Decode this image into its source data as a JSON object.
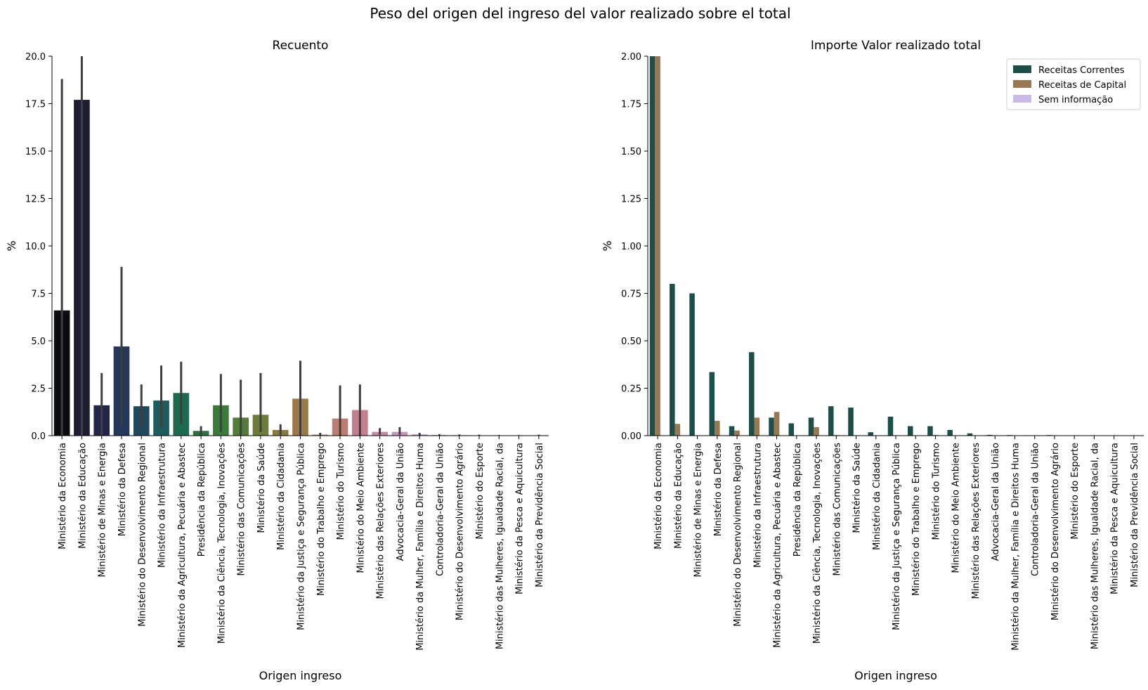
{
  "figure": {
    "suptitle": "Peso del origen del ingreso del valor realizado sobre el total"
  },
  "chart_data": [
    {
      "type": "bar",
      "title": "Recuento",
      "xlabel": "Origen ingreso",
      "ylabel": "%",
      "ylim": [
        0,
        20
      ],
      "yticks": [
        "0.0",
        "2.5",
        "5.0",
        "7.5",
        "10.0",
        "12.5",
        "15.0",
        "17.5",
        "20.0"
      ],
      "grid": false,
      "categories": [
        "Ministério da Economia",
        "Ministério da Educação",
        "Ministério de Minas e Energia",
        "Ministério da Defesa",
        "Ministério do Desenvolvimento Regional",
        "Ministério da Infraestrutura",
        "Ministério da Agricultura, Pecuária e Abastec",
        "Presidência da República",
        "Ministério da Ciência, Tecnologia, Inovações",
        "Ministério das Comunicações",
        "Ministério da Saúde",
        "Ministério da Cidadania",
        "Ministério da Justiça e Segurança Pública",
        "Ministério do Trabalho e Emprego",
        "Ministério do Turismo",
        "Ministério do Meio Ambiente",
        "Ministério das Relações Exteriores",
        "Advocacia-Geral da União",
        "Ministério da Mulher, Família e Direitos Huma",
        "Controladoria-Geral da União",
        "Ministério do Desenvolvimento Agrário",
        "Ministério do Esporte",
        "Ministério das Mulheres, Igualdade Racial, da",
        "Ministério da Pesca e Aquicultura",
        "Ministério da Previdência Social"
      ],
      "values": [
        6.6,
        17.7,
        1.6,
        4.7,
        1.55,
        1.85,
        2.25,
        0.25,
        1.6,
        0.95,
        1.1,
        0.3,
        1.95,
        0.05,
        0.9,
        1.35,
        0.2,
        0.2,
        0.07,
        0.04,
        0.03,
        0.01,
        0.01,
        0.01,
        0.01
      ],
      "error_low": [
        0,
        0,
        0,
        0.5,
        0.4,
        0.4,
        0.6,
        0.05,
        0.2,
        0,
        0.2,
        0.05,
        0,
        0,
        0,
        0,
        0.05,
        0.05,
        0,
        0,
        0,
        0,
        0,
        0,
        0
      ],
      "error_high": [
        18.8,
        20,
        3.3,
        8.9,
        2.7,
        3.7,
        3.9,
        0.5,
        3.25,
        2.95,
        3.3,
        0.6,
        3.95,
        0.15,
        2.65,
        2.7,
        0.4,
        0.45,
        0.15,
        0.08,
        0.06,
        0.05,
        0.03,
        0.03,
        0.05
      ],
      "colors": [
        "#0b0b10",
        "#1c1c33",
        "#232547",
        "#243659",
        "#1f4a5e",
        "#1d5c5e",
        "#1e6a4f",
        "#2a7440",
        "#3b7b3a",
        "#537c3a",
        "#6d7c3a",
        "#867a3e",
        "#9b7a4a",
        "#ad7a5b",
        "#bd7b71",
        "#c47f8e",
        "#c888a8",
        "#c694c2",
        "#c4a2d9",
        "#c6b1e6",
        "#cdbfee",
        "#d6cdf3",
        "#e0dbf7",
        "#e8e5fa",
        "#f0eefc"
      ]
    },
    {
      "type": "bar",
      "title": "Importe Valor realizado total",
      "xlabel": "Origen ingreso",
      "ylabel": "%",
      "ylim": [
        0,
        2
      ],
      "yticks": [
        "0.00",
        "0.25",
        "0.50",
        "0.75",
        "1.00",
        "1.25",
        "1.50",
        "1.75",
        "2.00"
      ],
      "grid": false,
      "legend_position": "top-right",
      "categories": [
        "Ministério da Economia",
        "Ministério da Educação",
        "Ministério de Minas e Energia",
        "Ministério da Defesa",
        "Ministério do Desenvolvimento Regional",
        "Ministério da Infraestrutura",
        "Ministério da Agricultura, Pecuária e Abastec",
        "Presidência da República",
        "Ministério da Ciência, Tecnologia, Inovações",
        "Ministério das Comunicações",
        "Ministério da Saúde",
        "Ministério da Cidadania",
        "Ministério da Justiça e Segurança Pública",
        "Ministério do Trabalho e Emprego",
        "Ministério do Turismo",
        "Ministério do Meio Ambiente",
        "Ministério das Relações Exteriores",
        "Advocacia-Geral da União",
        "Ministério da Mulher, Família e Direitos Huma",
        "Controladoria-Geral da União",
        "Ministério do Desenvolvimento Agrário",
        "Ministério do Esporte",
        "Ministério das Mulheres, Igualdade Racial, da",
        "Ministério da Pesca e Aquicultura",
        "Ministério da Previdência Social"
      ],
      "series": [
        {
          "name": "Receitas Correntes",
          "color": "#1d4f4a",
          "values": [
            2.0,
            0.8,
            0.75,
            0.335,
            0.05,
            0.44,
            0.095,
            0.065,
            0.095,
            0.155,
            0.148,
            0.018,
            0.1,
            0.05,
            0.05,
            0.03,
            0.012,
            0.004,
            0.003,
            0.002,
            0.003,
            0.001,
            0.001,
            0.001,
            0.001
          ]
        },
        {
          "name": "Receitas de Capital",
          "color": "#977851",
          "values": [
            2.0,
            0.062,
            0.0,
            0.078,
            0.027,
            0.095,
            0.125,
            0.0,
            0.045,
            0.003,
            0.0,
            0.0,
            0.0,
            0.0,
            0.003,
            0.0,
            0.0,
            0.0,
            0.0,
            0.0,
            0.0,
            0.0,
            0.0,
            0.0,
            0.0
          ]
        },
        {
          "name": "Sem informação",
          "color": "#c9b8e8",
          "values": [
            0,
            0,
            0,
            0,
            0,
            0,
            0,
            0,
            0,
            0,
            0,
            0,
            0,
            0,
            0,
            0,
            0,
            0,
            0,
            0,
            0,
            0,
            0,
            0,
            0
          ]
        }
      ]
    }
  ]
}
